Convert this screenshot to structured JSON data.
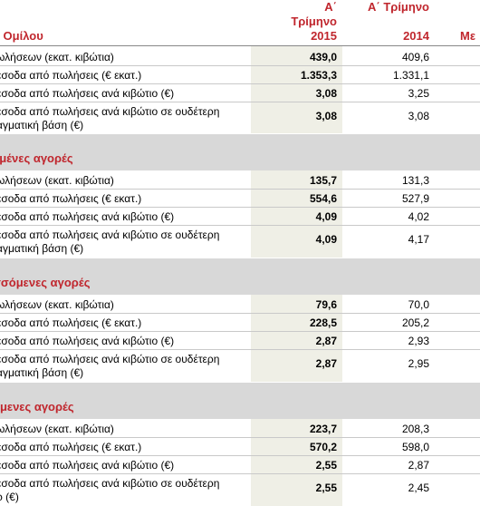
{
  "header": {
    "col2015_l1": "Α΄",
    "col2015_l2": "Τρίμηνο",
    "col2015_l3": "2015",
    "col2014_l1": "Α΄ Τρίμηνο",
    "col2014_l3": "2014",
    "col_right_partial": "Με",
    "group_label": "ο Ομίλου"
  },
  "sections": [
    {
      "title": "",
      "rows": [
        {
          "label": "ωλήσεων (εκατ. κιβώτια)",
          "v2015": "439,0",
          "v2014": "409,6"
        },
        {
          "label": "έσοδα από πωλήσεις (€ εκατ.)",
          "v2015": "1.353,3",
          "v2014": "1.331,1"
        },
        {
          "label": "έσοδα από πωλήσεις ανά κιβώτιο (€)",
          "v2015": "3,08",
          "v2014": "3,25"
        },
        {
          "label": "έσοδα από πωλήσεις ανά κιβώτιο σε ουδέτερη",
          "label2": "αγματική βάση (€)",
          "v2015": "3,08",
          "v2014": "3,08"
        }
      ]
    },
    {
      "title": "γμένες αγορές",
      "rows": [
        {
          "label": "ωλήσεων (εκατ. κιβώτια)",
          "v2015": "135,7",
          "v2014": "131,3"
        },
        {
          "label": "έσοδα από πωλήσεις (€ εκατ.)",
          "v2015": "554,6",
          "v2014": "527,9"
        },
        {
          "label": "έσοδα από πωλήσεις ανά κιβώτιο (€)",
          "v2015": "4,09",
          "v2014": "4,02"
        },
        {
          "label": "έσοδα από πωλήσεις ανά κιβώτιο σε ουδέτερη",
          "label2": "αγματική βάση (€)",
          "v2015": "4,09",
          "v2014": "4,17"
        }
      ]
    },
    {
      "title": "σσόμενες αγορές",
      "rows": [
        {
          "label": "ωλήσεων (εκατ. κιβώτια)",
          "v2015": "79,6",
          "v2014": "70,0"
        },
        {
          "label": "έσοδα από πωλήσεις (€ εκατ.)",
          "v2015": "228,5",
          "v2014": "205,2"
        },
        {
          "label": "έσοδα από πωλήσεις ανά κιβώτιο (€)",
          "v2015": "2,87",
          "v2014": "2,93"
        },
        {
          "label": "έσοδα από πωλήσεις ανά κιβώτιο σε ουδέτερη",
          "label2": "αγματική βάση (€)",
          "v2015": "2,87",
          "v2014": "2,95"
        }
      ]
    },
    {
      "title": "όμενες αγορές",
      "rows": [
        {
          "label": "ωλήσεων (εκατ. κιβώτια)",
          "v2015": "223,7",
          "v2014": "208,3"
        },
        {
          "label": "έσοδα από πωλήσεις (€ εκατ.)",
          "v2015": "570,2",
          "v2014": "598,0"
        },
        {
          "label": "έσοδα από πωλήσεις ανά κιβώτιο (€)",
          "v2015": "2,55",
          "v2014": "2,87"
        },
        {
          "label": "έσοδα από πωλήσεις ανά κιβώτιο σε ουδέτερη",
          "label2": "ρ (€)",
          "v2015": "2,55",
          "v2014": "2,45"
        }
      ]
    }
  ]
}
